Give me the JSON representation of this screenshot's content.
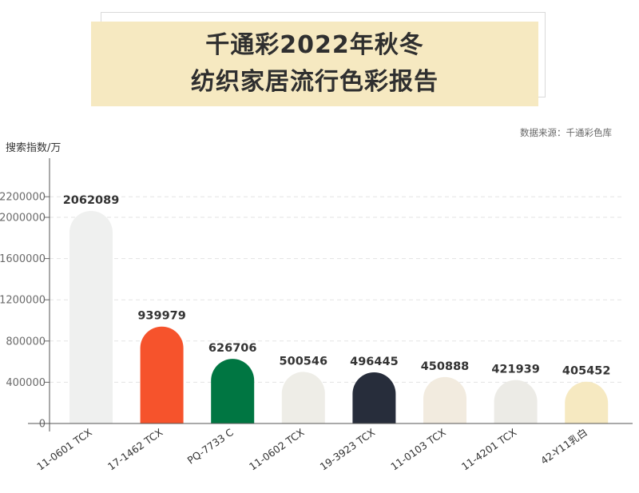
{
  "title": {
    "line1": "千通彩2022年秋冬",
    "line2": "纺织家居流行色彩报告"
  },
  "source": "数据来源：千通彩色库",
  "chart_data": {
    "type": "bar",
    "ylabel": "搜索指数/万",
    "xlabel": "",
    "ylim": [
      0,
      2400000
    ],
    "yticks": [
      0,
      400000,
      800000,
      1200000,
      1600000,
      2000000,
      2200000
    ],
    "grid": true,
    "categories": [
      "11-0601 TCX",
      "17-1462 TCX",
      "PQ-7733 C",
      "11-0602 TCX",
      "19-3923 TCX",
      "11-0103 TCX",
      "11-4201 TCX",
      "42-Y11乳白"
    ],
    "values": [
      2062089,
      939979,
      626706,
      500546,
      496445,
      450888,
      421939,
      405452
    ],
    "colors": [
      "#eff0ef",
      "#f6532c",
      "#007642",
      "#eeede7",
      "#272d3b",
      "#f2ebdf",
      "#ecebe6",
      "#f6e9c1"
    ]
  }
}
